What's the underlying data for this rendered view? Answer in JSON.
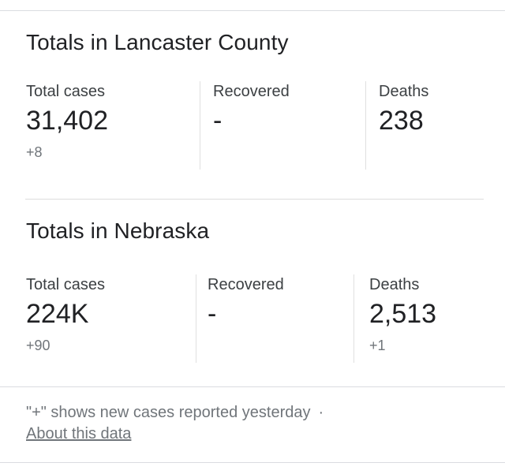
{
  "colors": {
    "background": "#ffffff",
    "title_text": "#202124",
    "label_text": "#3c4043",
    "value_text": "#202124",
    "muted_text": "#70757a",
    "divider": "#dadce0"
  },
  "sections": [
    {
      "title": "Totals in Lancaster County",
      "stats": [
        {
          "label": "Total cases",
          "value": "31,402",
          "delta": "+8"
        },
        {
          "label": "Recovered",
          "value": "-",
          "delta": ""
        },
        {
          "label": "Deaths",
          "value": "238",
          "delta": ""
        }
      ]
    },
    {
      "title": "Totals in Nebraska",
      "stats": [
        {
          "label": "Total cases",
          "value": "224K",
          "delta": "+90"
        },
        {
          "label": "Recovered",
          "value": "-",
          "delta": ""
        },
        {
          "label": "Deaths",
          "value": "2,513",
          "delta": "+1"
        }
      ]
    }
  ],
  "footer": {
    "note": "\"+\" shows new cases reported yesterday",
    "separator": "·",
    "link_label": "About this data"
  }
}
